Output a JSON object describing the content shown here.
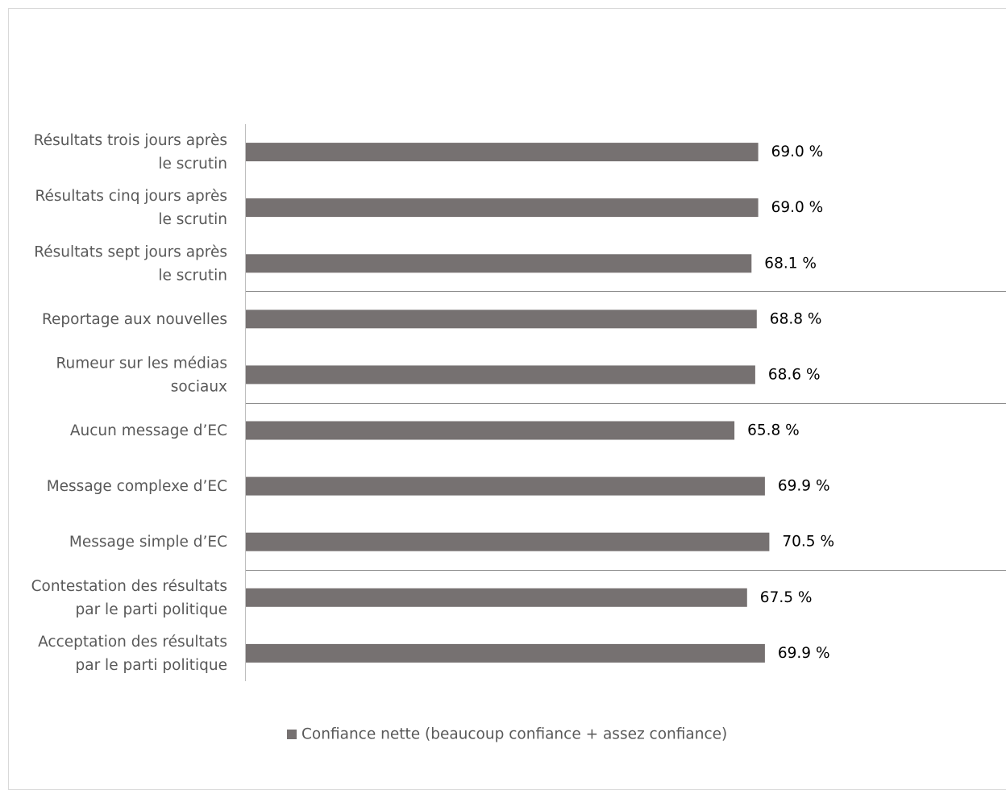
{
  "chart_data": {
    "type": "bar",
    "orientation": "horizontal",
    "categories": [
      [
        "Résultats trois jours après",
        "le scrutin"
      ],
      [
        "Résultats cinq jours après",
        "le scrutin"
      ],
      [
        "Résultats sept jours après",
        "le scrutin"
      ],
      [
        "Reportage aux nouvelles"
      ],
      [
        "Rumeur sur les médias",
        "sociaux"
      ],
      [
        "Aucun message d’EC"
      ],
      [
        "Message complexe d’EC"
      ],
      [
        "Message simple d’EC"
      ],
      [
        "Contestation des résultats",
        "par le parti politique"
      ],
      [
        "Acceptation des résultats",
        "par le parti politique"
      ]
    ],
    "series": [
      {
        "name": "Confiance nette (beaucoup confiance + assez confiance)",
        "values": [
          69.0,
          69.0,
          68.1,
          68.8,
          68.6,
          65.8,
          69.9,
          70.5,
          67.5,
          69.9
        ],
        "labels": [
          "69.0 %",
          "69.0 %",
          "68.1 %",
          "68.8 %",
          "68.6 %",
          "65.8 %",
          "69.9 %",
          "70.5 %",
          "67.5 %",
          "69.9 %"
        ],
        "color": "#767171"
      }
    ],
    "group_separators_after_index": [
      2,
      4,
      7
    ],
    "xlim": [
      0,
      100
    ],
    "legend_position": "bottom",
    "grid": false,
    "title": "",
    "xlabel": "",
    "ylabel": ""
  }
}
